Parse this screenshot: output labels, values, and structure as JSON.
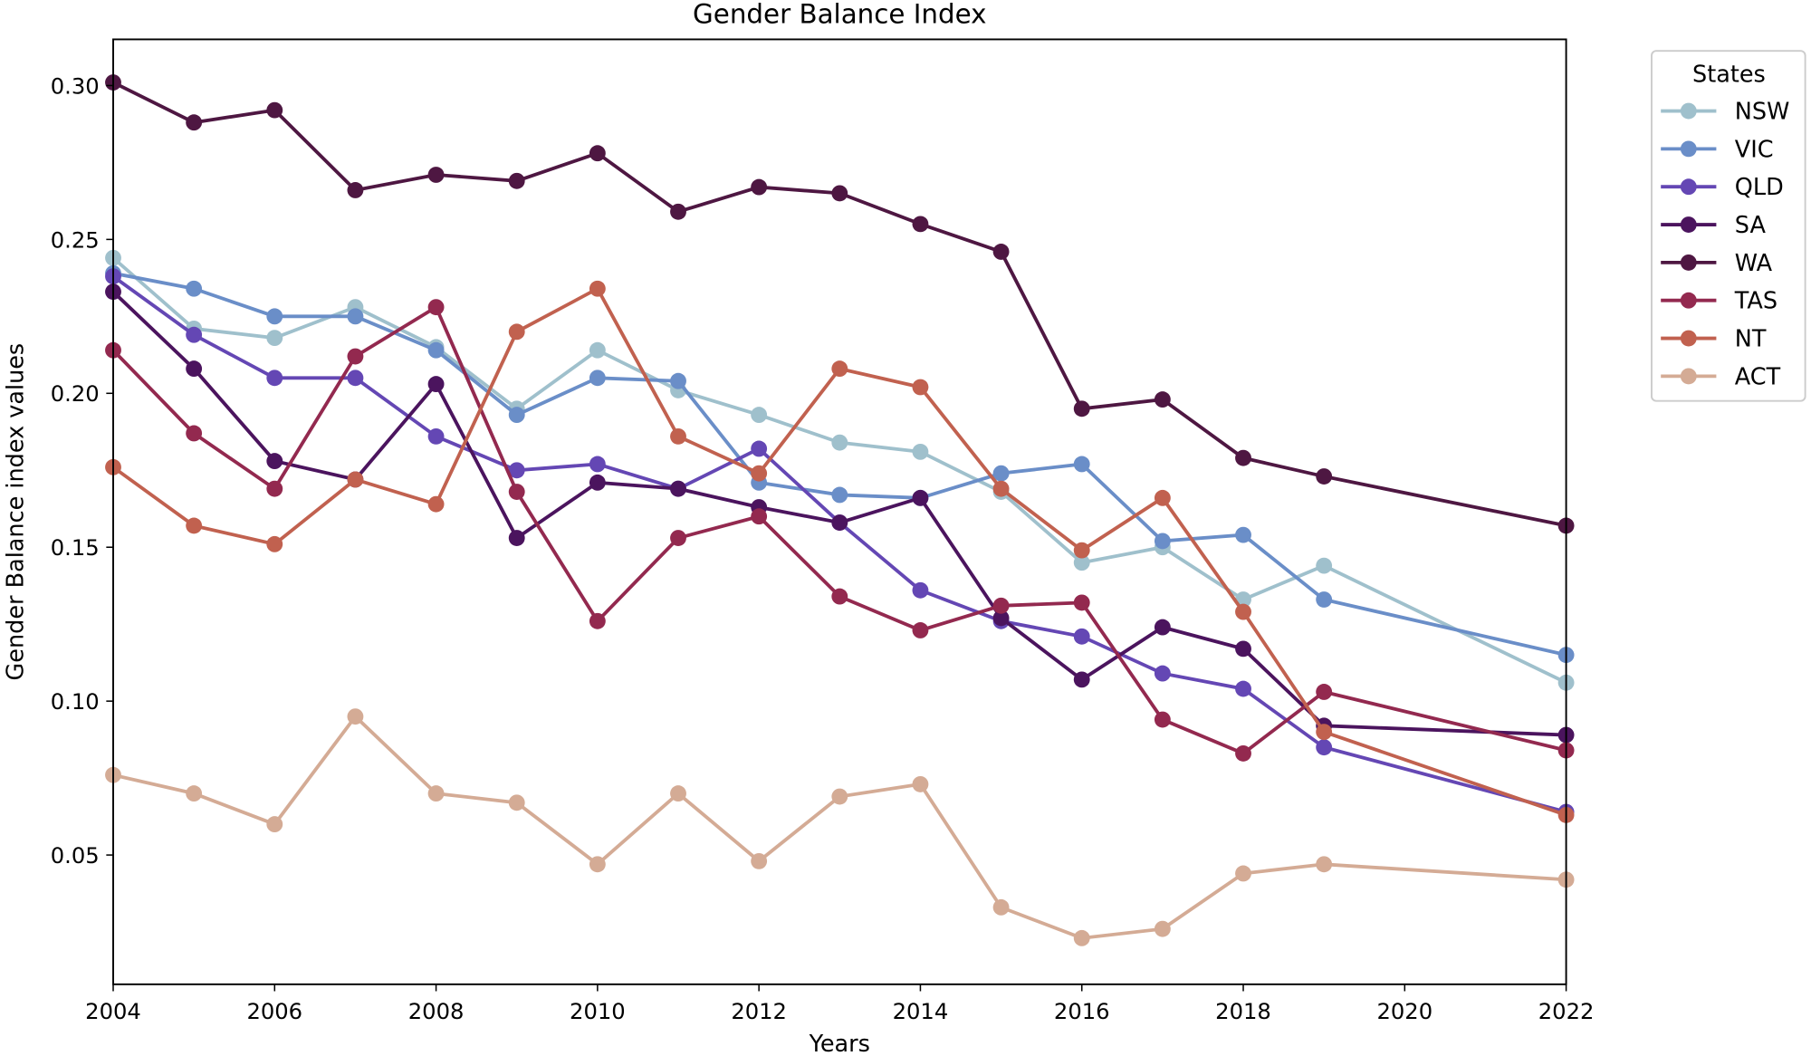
{
  "chart_data": {
    "type": "line",
    "title": "Gender Balance Index",
    "xlabel": "Years",
    "ylabel": "Gender Balance index values",
    "xlim": [
      2004,
      2022
    ],
    "ylim": [
      0.008,
      0.315
    ],
    "xticks": [
      2004,
      2006,
      2008,
      2010,
      2012,
      2014,
      2016,
      2018,
      2020,
      2022
    ],
    "yticks": [
      0.05,
      0.1,
      0.15,
      0.2,
      0.25,
      0.3
    ],
    "ytick_labels": [
      "0.05",
      "0.10",
      "0.15",
      "0.20",
      "0.25",
      "0.30"
    ],
    "grid": false,
    "legend": {
      "title": "States",
      "placement": "outside-top-right"
    },
    "x": [
      2004,
      2005,
      2006,
      2007,
      2008,
      2009,
      2010,
      2011,
      2012,
      2013,
      2014,
      2015,
      2016,
      2017,
      2018,
      2019,
      2022
    ],
    "series": [
      {
        "name": "NSW",
        "color": "#9fc0cc",
        "values": [
          0.244,
          0.221,
          0.218,
          0.228,
          0.215,
          0.195,
          0.214,
          0.201,
          0.193,
          0.184,
          0.181,
          0.168,
          0.145,
          0.15,
          0.133,
          0.144,
          0.106
        ]
      },
      {
        "name": "VIC",
        "color": "#6a8ec8",
        "values": [
          0.239,
          0.234,
          0.225,
          0.225,
          0.214,
          0.193,
          0.205,
          0.204,
          0.171,
          0.167,
          0.166,
          0.174,
          0.177,
          0.152,
          0.154,
          0.133,
          0.115
        ]
      },
      {
        "name": "QLD",
        "color": "#6447b4",
        "values": [
          0.238,
          0.219,
          0.205,
          0.205,
          0.186,
          0.175,
          0.177,
          0.169,
          0.182,
          0.158,
          0.136,
          0.126,
          0.121,
          0.109,
          0.104,
          0.085,
          0.064
        ]
      },
      {
        "name": "SA",
        "color": "#4b145e",
        "values": [
          0.233,
          0.208,
          0.178,
          0.172,
          0.203,
          0.153,
          0.171,
          0.169,
          0.163,
          0.158,
          0.166,
          0.127,
          0.107,
          0.124,
          0.117,
          0.092,
          0.089
        ]
      },
      {
        "name": "WA",
        "color": "#4e1742",
        "values": [
          0.301,
          0.288,
          0.292,
          0.266,
          0.271,
          0.269,
          0.278,
          0.259,
          0.267,
          0.265,
          0.255,
          0.246,
          0.195,
          0.198,
          0.179,
          0.173,
          0.157
        ]
      },
      {
        "name": "TAS",
        "color": "#93294f",
        "values": [
          0.214,
          0.187,
          0.169,
          0.212,
          0.228,
          0.168,
          0.126,
          0.153,
          0.16,
          0.134,
          0.123,
          0.131,
          0.132,
          0.094,
          0.083,
          0.103,
          0.084
        ]
      },
      {
        "name": "NT",
        "color": "#c1614f",
        "values": [
          0.176,
          0.157,
          0.151,
          0.172,
          0.164,
          0.22,
          0.234,
          0.186,
          0.174,
          0.208,
          0.202,
          0.169,
          0.149,
          0.166,
          0.129,
          0.09,
          0.063
        ]
      },
      {
        "name": "ACT",
        "color": "#d4ab95",
        "values": [
          0.076,
          0.07,
          0.06,
          0.095,
          0.07,
          0.067,
          0.047,
          0.07,
          0.048,
          0.069,
          0.073,
          0.033,
          0.023,
          0.026,
          0.044,
          0.047,
          0.042
        ]
      }
    ]
  }
}
